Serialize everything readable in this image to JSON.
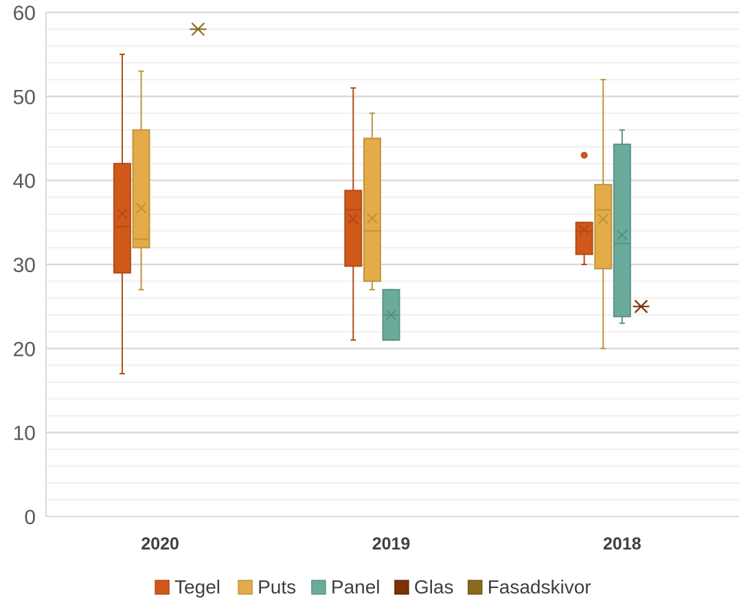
{
  "chart_data": {
    "type": "boxplot",
    "categories": [
      "2020",
      "2019",
      "2018"
    ],
    "ylim": [
      0,
      60
    ],
    "yticks": [
      0,
      10,
      20,
      30,
      40,
      50,
      60
    ],
    "grid": true,
    "legend_position": "bottom",
    "series": [
      {
        "name": "Tegel",
        "color": "#d0591a",
        "boxes": [
          {
            "category": "2020",
            "min": 17,
            "q1": 29,
            "median": 34.5,
            "q3": 42,
            "max": 55,
            "mean": 36,
            "outliers": []
          },
          {
            "category": "2019",
            "min": 21,
            "q1": 29.8,
            "median": 36.5,
            "q3": 38.8,
            "max": 51,
            "mean": 35.4,
            "outliers": []
          },
          {
            "category": "2018",
            "min": 30,
            "q1": 31.2,
            "median": 34,
            "q3": 35,
            "max": 35,
            "mean": 34.1,
            "outliers": [
              43
            ]
          }
        ]
      },
      {
        "name": "Puts",
        "color": "#e3ac48",
        "boxes": [
          {
            "category": "2020",
            "min": 27,
            "q1": 32,
            "median": 33,
            "q3": 46,
            "max": 53,
            "mean": 36.7,
            "outliers": []
          },
          {
            "category": "2019",
            "min": 27,
            "q1": 28,
            "median": 34,
            "q3": 45,
            "max": 48,
            "mean": 35.5,
            "outliers": []
          },
          {
            "category": "2018",
            "min": 20,
            "q1": 29.5,
            "median": 36.5,
            "q3": 39.5,
            "max": 52,
            "mean": 35.4,
            "outliers": []
          }
        ]
      },
      {
        "name": "Panel",
        "color": "#6aab9c",
        "boxes": [
          {
            "category": "2019",
            "min": 21,
            "q1": 21,
            "median": 24,
            "q3": 27,
            "max": 27,
            "mean": 24,
            "outliers": []
          },
          {
            "category": "2018",
            "min": 23,
            "q1": 23.8,
            "median": 32.5,
            "q3": 44.3,
            "max": 46,
            "mean": 33.5,
            "outliers": []
          }
        ]
      },
      {
        "name": "Glas",
        "color": "#7a3206",
        "boxes": [
          {
            "category": "2018",
            "min": 25,
            "q1": 25,
            "median": 25,
            "q3": 25,
            "max": 25,
            "mean": 25,
            "outliers": []
          }
        ]
      },
      {
        "name": "Fasadskivor",
        "color": "#8a6a1c",
        "boxes": [
          {
            "category": "2020",
            "min": 58,
            "q1": 58,
            "median": 58,
            "q3": 58,
            "max": 58,
            "mean": 58,
            "outliers": []
          }
        ]
      }
    ]
  }
}
